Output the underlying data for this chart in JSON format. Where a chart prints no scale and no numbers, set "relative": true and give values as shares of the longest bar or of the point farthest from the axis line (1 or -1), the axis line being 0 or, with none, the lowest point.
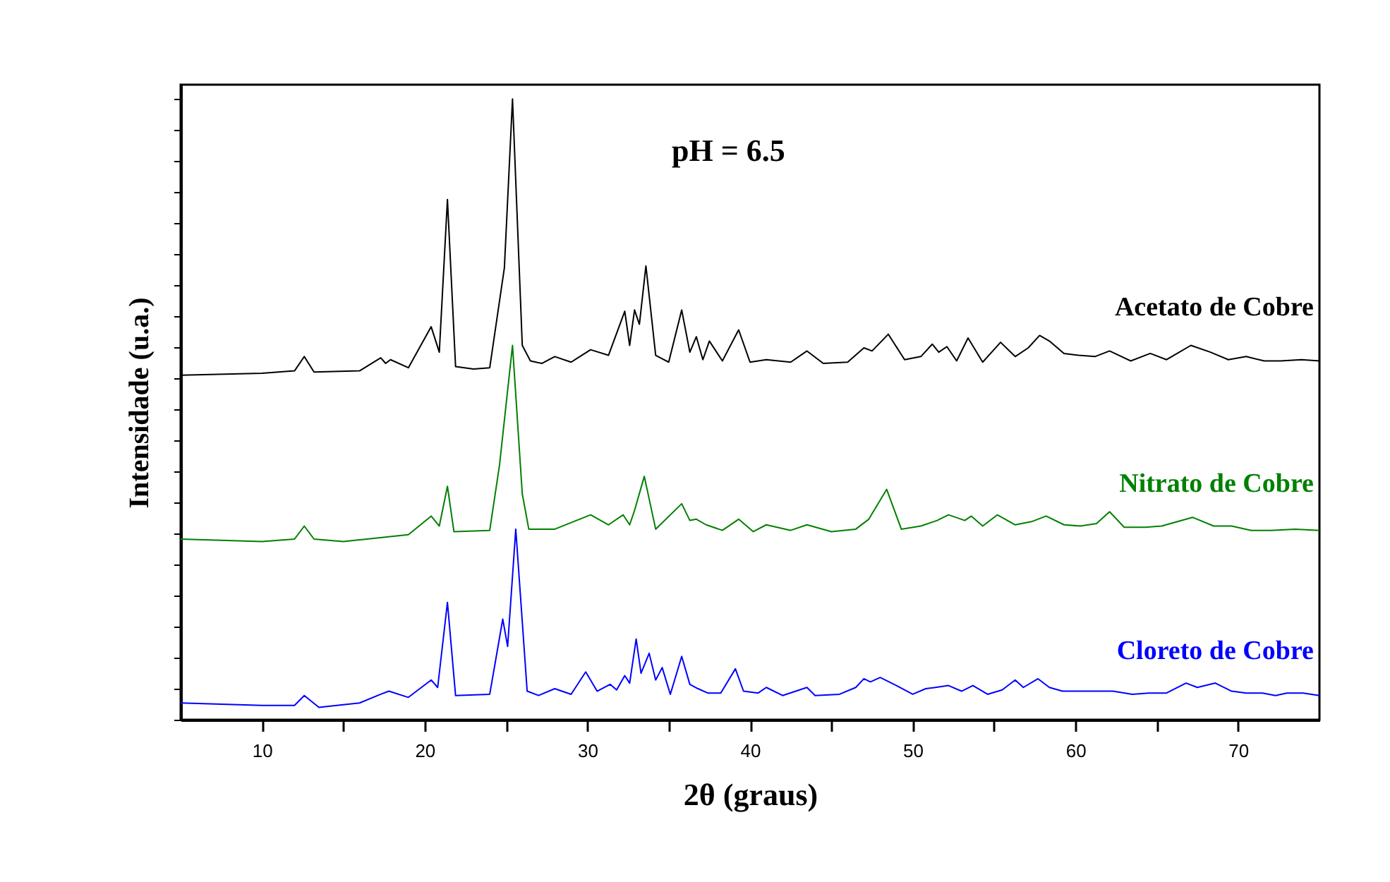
{
  "chart_data": {
    "type": "line",
    "relative": true,
    "xlabel": "2θ (graus)",
    "ylabel": "Intensidade (u.a.)",
    "annotations": [
      "pH = 6.5"
    ],
    "xlim": [
      5,
      75
    ],
    "xticks": [
      10,
      {
        "value": 15,
        "label": null
      },
      20,
      {
        "value": 25,
        "label": null
      },
      30,
      {
        "value": 35,
        "label": null
      },
      40,
      {
        "value": 45,
        "label": null
      },
      50,
      {
        "value": 55,
        "label": null
      },
      60,
      {
        "value": 65,
        "label": null
      },
      70
    ],
    "tick_labels": "x",
    "grid": false,
    "marker": "none",
    "line_style": "solid",
    "series": [
      {
        "name": "Acetato de Cobre",
        "color": "#000000",
        "x": [
          5,
          10,
          12,
          12.6,
          13.2,
          16,
          17.3,
          17.6,
          17.9,
          19,
          20.4,
          20.9,
          21.4,
          21.9,
          23,
          24,
          24.9,
          25.4,
          26,
          26.5,
          27.2,
          28,
          29,
          30.2,
          31.3,
          32.3,
          32.6,
          32.9,
          33.2,
          33.6,
          34.2,
          35,
          35.8,
          36.3,
          36.7,
          37.1,
          37.5,
          38.3,
          39.3,
          40,
          41,
          42.5,
          43.5,
          44.5,
          46,
          47,
          47.5,
          48.5,
          49.5,
          50.5,
          51.2,
          51.6,
          52.1,
          52.7,
          53.4,
          54.3,
          55.4,
          56.3,
          57.1,
          57.8,
          58.4,
          59.3,
          60.2,
          61.2,
          62.1,
          63.4,
          64.6,
          65.6,
          67.1,
          68.3,
          69.4,
          70.5,
          71.6,
          72.6,
          73.9,
          75
        ],
        "values": [
          0.555,
          0.558,
          0.562,
          0.585,
          0.56,
          0.562,
          0.583,
          0.574,
          0.58,
          0.567,
          0.633,
          0.592,
          0.838,
          0.569,
          0.565,
          0.567,
          0.728,
          1.0,
          0.603,
          0.578,
          0.574,
          0.585,
          0.576,
          0.596,
          0.587,
          0.658,
          0.603,
          0.66,
          0.637,
          0.731,
          0.587,
          0.576,
          0.66,
          0.592,
          0.617,
          0.58,
          0.61,
          0.578,
          0.628,
          0.576,
          0.58,
          0.576,
          0.594,
          0.574,
          0.576,
          0.599,
          0.594,
          0.621,
          0.58,
          0.585,
          0.605,
          0.592,
          0.601,
          0.578,
          0.615,
          0.576,
          0.608,
          0.585,
          0.599,
          0.619,
          0.61,
          0.59,
          0.587,
          0.585,
          0.594,
          0.578,
          0.59,
          0.58,
          0.603,
          0.592,
          0.58,
          0.585,
          0.578,
          0.578,
          0.58,
          0.578
        ]
      },
      {
        "name": "Nitrato de Cobre",
        "color": "#008000",
        "x": [
          5,
          10,
          12,
          12.6,
          13.2,
          15,
          19,
          20.4,
          20.9,
          21.4,
          21.8,
          24,
          24.6,
          25.4,
          26,
          26.4,
          28,
          30.2,
          31.3,
          32.2,
          32.6,
          32.9,
          33.5,
          34.2,
          35.8,
          36.3,
          36.7,
          37.3,
          38.3,
          39.3,
          40.2,
          41,
          42.5,
          43.5,
          45,
          46.5,
          47.3,
          48.4,
          49.3,
          50.5,
          51.5,
          52.2,
          53.2,
          53.6,
          54.3,
          55.2,
          56.3,
          57.3,
          58.2,
          59.3,
          60.3,
          61.3,
          62.1,
          63,
          64.3,
          65.3,
          67.2,
          68.5,
          69.6,
          70.8,
          72,
          73.5,
          75
        ],
        "values": [
          0.291,
          0.287,
          0.291,
          0.312,
          0.291,
          0.287,
          0.298,
          0.328,
          0.312,
          0.376,
          0.303,
          0.305,
          0.41,
          0.603,
          0.364,
          0.307,
          0.307,
          0.33,
          0.314,
          0.33,
          0.314,
          0.337,
          0.392,
          0.307,
          0.348,
          0.321,
          0.323,
          0.314,
          0.305,
          0.323,
          0.303,
          0.314,
          0.305,
          0.314,
          0.303,
          0.307,
          0.323,
          0.371,
          0.307,
          0.312,
          0.321,
          0.33,
          0.321,
          0.328,
          0.312,
          0.33,
          0.314,
          0.319,
          0.328,
          0.314,
          0.312,
          0.316,
          0.335,
          0.31,
          0.31,
          0.312,
          0.326,
          0.312,
          0.312,
          0.305,
          0.305,
          0.307,
          0.305
        ]
      },
      {
        "name": "Cloreto de Cobre",
        "color": "#0000ff",
        "x": [
          5,
          10,
          12,
          12.6,
          13.5,
          16,
          17.3,
          17.8,
          19,
          20.4,
          20.8,
          21.4,
          21.9,
          24,
          24.8,
          25.1,
          25.6,
          26.3,
          27,
          28,
          29,
          29.9,
          30.6,
          31.4,
          31.8,
          32.3,
          32.6,
          33,
          33.3,
          33.8,
          34.2,
          34.6,
          35.1,
          35.8,
          36.3,
          36.8,
          37.4,
          38.2,
          39.1,
          39.6,
          40.5,
          41,
          42,
          43.5,
          44,
          45.5,
          46.5,
          47,
          47.4,
          48,
          49,
          50,
          50.8,
          51.4,
          52.2,
          53,
          53.7,
          54.6,
          55.5,
          56.3,
          56.8,
          57.7,
          58.4,
          59.2,
          60.2,
          61,
          62.3,
          63.5,
          64.5,
          65.6,
          66.8,
          67.5,
          68.6,
          69.6,
          70.5,
          71.5,
          72.3,
          73,
          74,
          75
        ],
        "values": [
          0.027,
          0.023,
          0.023,
          0.039,
          0.02,
          0.027,
          0.041,
          0.046,
          0.036,
          0.064,
          0.052,
          0.189,
          0.039,
          0.041,
          0.162,
          0.118,
          0.307,
          0.046,
          0.039,
          0.05,
          0.041,
          0.077,
          0.046,
          0.057,
          0.048,
          0.071,
          0.059,
          0.13,
          0.075,
          0.107,
          0.064,
          0.084,
          0.041,
          0.102,
          0.057,
          0.05,
          0.043,
          0.043,
          0.082,
          0.046,
          0.043,
          0.052,
          0.039,
          0.052,
          0.039,
          0.041,
          0.052,
          0.066,
          0.061,
          0.068,
          0.055,
          0.041,
          0.05,
          0.052,
          0.055,
          0.046,
          0.055,
          0.041,
          0.048,
          0.064,
          0.052,
          0.066,
          0.052,
          0.046,
          0.046,
          0.046,
          0.046,
          0.041,
          0.043,
          0.043,
          0.059,
          0.052,
          0.059,
          0.046,
          0.043,
          0.043,
          0.039,
          0.043,
          0.043,
          0.039
        ]
      }
    ]
  }
}
